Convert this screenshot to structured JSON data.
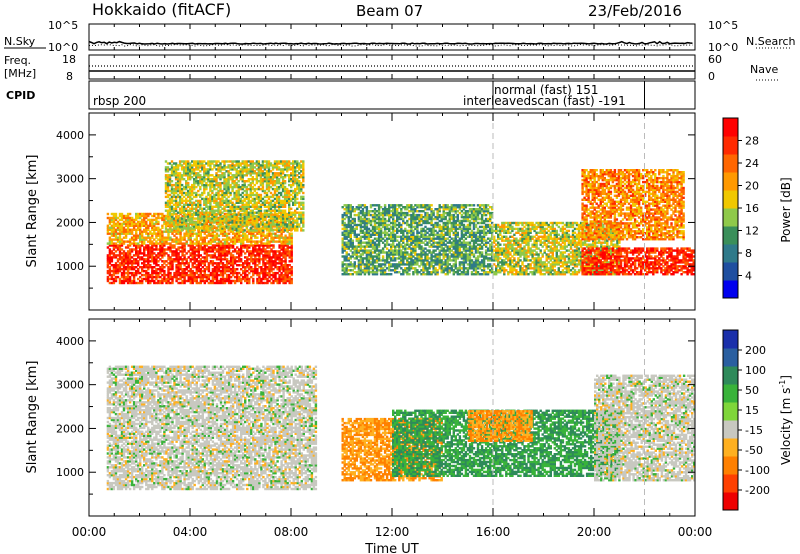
{
  "header": {
    "station": "Hokkaido (fitACF)",
    "beam": "Beam 07",
    "date": "23/Feb/2016"
  },
  "panels": {
    "nsky": {
      "label": "N.Sky",
      "right_label": "N.Search",
      "left_ticks": [
        "10^5",
        "10^0"
      ],
      "right_ticks": [
        "10^5",
        "10^0"
      ]
    },
    "freq": {
      "label_line1": "Freq.",
      "label_line2": "[MHz]",
      "right_label": "Nave",
      "left_ticks": [
        "18",
        "8"
      ],
      "right_ticks": [
        "60",
        "0"
      ]
    },
    "cpid": {
      "label": "CPID",
      "entries": [
        {
          "text": "rbsp 200",
          "start_h": 0,
          "end_h": 16
        },
        {
          "text": "normal (fast) 151",
          "start_h": 16,
          "end_h": 22
        },
        {
          "text": "interleavedscan (fast) -191",
          "start_h": 16,
          "end_h": 22
        }
      ]
    }
  },
  "axes": {
    "ylabel": "Slant Range [km]",
    "xlabel": "Time UT",
    "yticks": [
      "1000",
      "2000",
      "3000",
      "4000"
    ],
    "xticks": [
      "00:00",
      "04:00",
      "08:00",
      "12:00",
      "16:00",
      "20:00",
      "00:00"
    ]
  },
  "colorbars": {
    "power": {
      "label": "Power [dB]",
      "ticks": [
        "4",
        "8",
        "12",
        "16",
        "20",
        "24",
        "28"
      ],
      "colors": [
        "#0000ee",
        "#1f4fa0",
        "#2f7a8a",
        "#3a8f5a",
        "#8fc94a",
        "#f0c800",
        "#ff9900",
        "#ff6600",
        "#ff2a00",
        "#ff0000"
      ]
    },
    "velocity": {
      "label": "Velocity [m s",
      "label_exp": "-1",
      "label_close": "]",
      "ticks": [
        "200",
        "100",
        "50",
        "15",
        "-15",
        "-50",
        "-100",
        "-200"
      ],
      "colors": [
        "#1a2faa",
        "#2a5fa0",
        "#2e8a5a",
        "#39b33a",
        "#7fd63a",
        "#c8c8c0",
        "#ffb020",
        "#ff8000",
        "#ff4000",
        "#ee0000"
      ]
    }
  },
  "chart_data": {
    "type": "heatmap",
    "x_unit": "hours UT",
    "xlim": [
      0,
      24
    ],
    "ylim": [
      0,
      4500
    ],
    "vlines_h": [
      16,
      22
    ],
    "power_regions": [
      {
        "t": [
          0.7,
          8.0
        ],
        "r": [
          600,
          1500
        ],
        "value": 28
      },
      {
        "t": [
          0.7,
          8.0
        ],
        "r": [
          1500,
          2200
        ],
        "value": 20
      },
      {
        "t": [
          3.0,
          8.5
        ],
        "r": [
          1800,
          3400
        ],
        "value": 16
      },
      {
        "t": [
          10.0,
          16.0
        ],
        "r": [
          800,
          2400
        ],
        "value": 12
      },
      {
        "t": [
          16.0,
          21.0
        ],
        "r": [
          800,
          2000
        ],
        "value": 16
      },
      {
        "t": [
          19.5,
          24.0
        ],
        "r": [
          800,
          1400
        ],
        "value": 28
      },
      {
        "t": [
          19.5,
          23.5
        ],
        "r": [
          1600,
          3200
        ],
        "value": 22
      }
    ],
    "velocity_regions": [
      {
        "t": [
          0.7,
          9.0
        ],
        "r": [
          600,
          3400
        ],
        "value": 0
      },
      {
        "t": [
          10.0,
          14.0
        ],
        "r": [
          800,
          2200
        ],
        "value": -50
      },
      {
        "t": [
          12.0,
          21.0
        ],
        "r": [
          900,
          2400
        ],
        "value": 50
      },
      {
        "t": [
          15.0,
          17.5
        ],
        "r": [
          1700,
          2400
        ],
        "value": -50
      },
      {
        "t": [
          20.0,
          24.0
        ],
        "r": [
          800,
          3200
        ],
        "value": 0
      }
    ]
  }
}
